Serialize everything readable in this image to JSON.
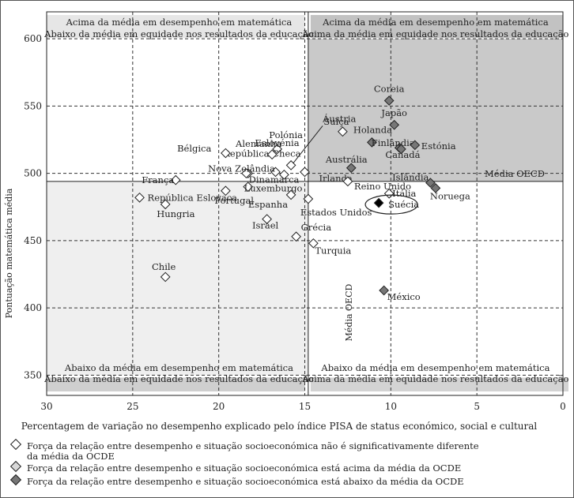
{
  "chart_data": {
    "type": "scatter",
    "xlabel": "Percentagem de variação no desempenho explicado pelo índice PISA de status económico, social e cultural",
    "ylabel": "Pontuação matemática média",
    "xlim": [
      30,
      0
    ],
    "ylim": [
      335,
      620
    ],
    "x_ticks": [
      "30",
      "25",
      "20",
      "15",
      "10",
      "5",
      "0"
    ],
    "y_ticks": [
      "350",
      "400",
      "450",
      "500",
      "550",
      "600"
    ],
    "oecd_mean_y_label": "Média OECD",
    "oecd_mean_x_label": "Média OECD",
    "oecd_mean_x": 14.8,
    "oecd_mean_y": 494,
    "quadrant_labels": {
      "top_left": [
        "Acima da média em desempenho em matemática",
        "Abaixo da média em equidade nos resultados da educação"
      ],
      "top_right": [
        "Acima da média em desempenho em matemática",
        "Acima da média em equidade nos resultados da educação"
      ],
      "bottom_left": [
        "Abaixo da média em desempenho em matemática",
        "Abaixo da média em equidade nos resultados da educação"
      ],
      "bottom_right": [
        "Abaixo da média em desempenho em matemática",
        "Acima da média em equidade nos resultados da educação"
      ]
    },
    "highlighted_country": "Suécia",
    "points": [
      {
        "label": "Coreia",
        "x": 10.1,
        "y": 554,
        "group": "below"
      },
      {
        "label": "Japão",
        "x": 9.8,
        "y": 536,
        "group": "below"
      },
      {
        "label": "Holanda",
        "x": 11.1,
        "y": 523,
        "group": "below"
      },
      {
        "label": "Finlândia",
        "x": 9.5,
        "y": 519,
        "group": "below"
      },
      {
        "label": "Estónia",
        "x": 8.6,
        "y": 521,
        "group": "below"
      },
      {
        "label": "Canadá",
        "x": 9.4,
        "y": 518,
        "group": "below"
      },
      {
        "label": "Austrália",
        "x": 12.3,
        "y": 504,
        "group": "below"
      },
      {
        "label": "Islândia",
        "x": 7.7,
        "y": 493,
        "group": "below"
      },
      {
        "label": "Noruega",
        "x": 7.4,
        "y": 489,
        "group": "below"
      },
      {
        "label": "México",
        "x": 10.4,
        "y": 413,
        "group": "below"
      },
      {
        "label": "Suíça",
        "x": 12.8,
        "y": 531,
        "group": "average"
      },
      {
        "label": "Áustria",
        "x": 15.8,
        "y": 506,
        "group": "average"
      },
      {
        "label": "Eslovénia",
        "x": 16.7,
        "y": 501,
        "group": "average"
      },
      {
        "label": "Polónia",
        "x": 16.6,
        "y": 518,
        "group": "average"
      },
      {
        "label": "República Checa",
        "x": 16.2,
        "y": 499,
        "group": "average"
      },
      {
        "label": "Bélgica",
        "x": 19.6,
        "y": 515,
        "group": "average"
      },
      {
        "label": "Alemanha",
        "x": 16.9,
        "y": 514,
        "group": "average"
      },
      {
        "label": "Irlanda",
        "x": 15.0,
        "y": 501,
        "group": "average"
      },
      {
        "label": "Reino Unido",
        "x": 12.5,
        "y": 494,
        "group": "average"
      },
      {
        "label": "Itália",
        "x": 10.1,
        "y": 485,
        "group": "average"
      },
      {
        "label": "Dinamarca",
        "x": 18.3,
        "y": 500,
        "group": "average"
      },
      {
        "label": "Luxemburgo",
        "x": 18.3,
        "y": 490,
        "group": "average"
      },
      {
        "label": "Espanha",
        "x": 15.8,
        "y": 484,
        "group": "average"
      },
      {
        "label": "Estados Unidos",
        "x": 14.8,
        "y": 481,
        "group": "average"
      },
      {
        "label": "França",
        "x": 22.5,
        "y": 495,
        "group": "average"
      },
      {
        "label": "Nova Zelândia",
        "x": 18.4,
        "y": 500,
        "group": "average"
      },
      {
        "label": "Portugal",
        "x": 19.6,
        "y": 487,
        "group": "average"
      },
      {
        "label": "República Eslovaca",
        "x": 24.6,
        "y": 482,
        "group": "average"
      },
      {
        "label": "Hungria",
        "x": 23.1,
        "y": 477,
        "group": "average"
      },
      {
        "label": "Israel",
        "x": 17.2,
        "y": 466,
        "group": "average"
      },
      {
        "label": "Grécia",
        "x": 15.5,
        "y": 453,
        "group": "average"
      },
      {
        "label": "Turquia",
        "x": 14.5,
        "y": 448,
        "group": "average"
      },
      {
        "label": "Chile",
        "x": 23.1,
        "y": 423,
        "group": "average"
      },
      {
        "label": "Suécia",
        "x": 10.7,
        "y": 478,
        "group": "highlight"
      }
    ]
  },
  "legend": {
    "average": "Força da relação entre desempenho e situação socioeconómica não é significativamente diferente da média da OCDE",
    "above": "Força da relação entre desempenho e situação socioeconómica está acima da média da OCDE",
    "below": "Força da relação entre desempenho e situação socioeconómica está abaixo da média da OCDE"
  }
}
